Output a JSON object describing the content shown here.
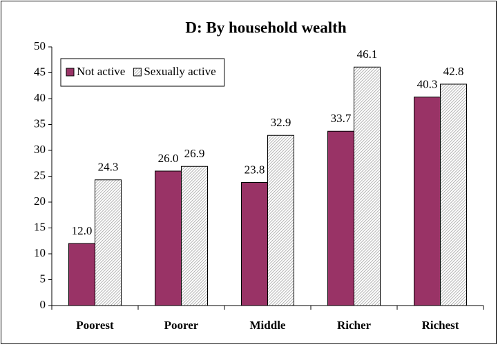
{
  "chart_data": {
    "type": "bar",
    "title": "D: By household wealth",
    "categories": [
      "Poorest",
      "Poorer",
      "Middle",
      "Richer",
      "Richest"
    ],
    "series": [
      {
        "name": "Not active",
        "color": "#993366",
        "values": [
          12,
          26,
          23.8,
          33.7,
          40.3
        ],
        "value_labels": [
          "12.0",
          "26.0",
          "23.8",
          "33.7",
          "40.3"
        ]
      },
      {
        "name": "Sexually active",
        "color": "#a0a0a0",
        "hatched": true,
        "values": [
          24.3,
          26.9,
          32.9,
          46.1,
          42.8
        ],
        "value_labels": [
          "24.3",
          "26.9",
          "32.9",
          "46.1",
          "42.8"
        ]
      }
    ],
    "ylim": [
      0,
      50
    ],
    "yticks": [
      0,
      5,
      10,
      15,
      20,
      25,
      30,
      35,
      40,
      45,
      50
    ],
    "grid": false,
    "legend": "top-left"
  }
}
